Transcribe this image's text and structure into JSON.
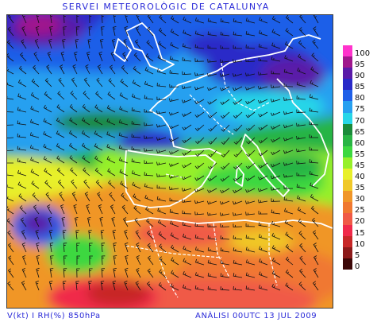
{
  "header": {
    "title": "SERVEI METEOROLÒGIC DE CATALUNYA"
  },
  "footer": {
    "variables": "V(kt) I RH(%) 850hPa",
    "analysis": "ANÀLISI 00UTC 13 JUL 2009"
  },
  "legend": {
    "items": [
      {
        "label": "100",
        "color": "#ff33cc"
      },
      {
        "label": "95",
        "color": "#a0178c"
      },
      {
        "label": "90",
        "color": "#5a1aa8"
      },
      {
        "label": "85",
        "color": "#2929c8"
      },
      {
        "label": "80",
        "color": "#1f5fe8"
      },
      {
        "label": "75",
        "color": "#27a0f0"
      },
      {
        "label": "70",
        "color": "#28d6e8"
      },
      {
        "label": "65",
        "color": "#1a8a3a"
      },
      {
        "label": "60",
        "color": "#28b444"
      },
      {
        "label": "55",
        "color": "#3cd840"
      },
      {
        "label": "45",
        "color": "#96f02a"
      },
      {
        "label": "40",
        "color": "#e8f02a"
      },
      {
        "label": "35",
        "color": "#f0c828"
      },
      {
        "label": "30",
        "color": "#f09628"
      },
      {
        "label": "25",
        "color": "#f07830"
      },
      {
        "label": "20",
        "color": "#f05a46"
      },
      {
        "label": "15",
        "color": "#f02a4a"
      },
      {
        "label": "10",
        "color": "#c82828"
      },
      {
        "label": "5",
        "color": "#8c1a1a"
      },
      {
        "label": "0",
        "color": "#3c0808"
      }
    ]
  }
}
